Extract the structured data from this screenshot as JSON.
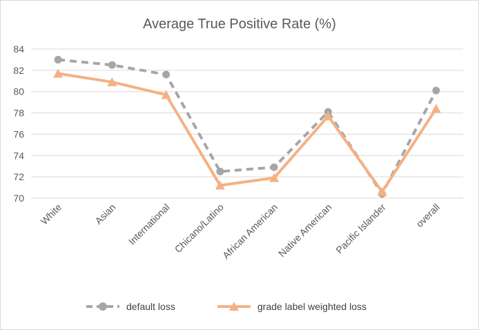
{
  "chart_data": {
    "type": "line",
    "title": "Average True Positive Rate (%)",
    "xlabel": "",
    "ylabel": "",
    "categories": [
      "White",
      "Asian",
      "International",
      "Chicano/Latino",
      "African American",
      "Native American",
      "Pacific Islander",
      "overall"
    ],
    "ylim": [
      70,
      84
    ],
    "yticks": [
      70,
      72,
      74,
      76,
      78,
      80,
      82,
      84
    ],
    "grid": true,
    "legend_position": "bottom",
    "series": [
      {
        "name": "default loss",
        "values": [
          83.0,
          82.5,
          81.6,
          72.5,
          72.9,
          78.1,
          70.4,
          80.1
        ],
        "color": "#a6a6a6",
        "style": "dashed",
        "marker": "circle"
      },
      {
        "name": "grade label weighted loss",
        "values": [
          81.7,
          80.9,
          79.7,
          71.2,
          71.9,
          77.7,
          70.6,
          78.4
        ],
        "color": "#f4b183",
        "style": "solid",
        "marker": "triangle"
      }
    ]
  }
}
